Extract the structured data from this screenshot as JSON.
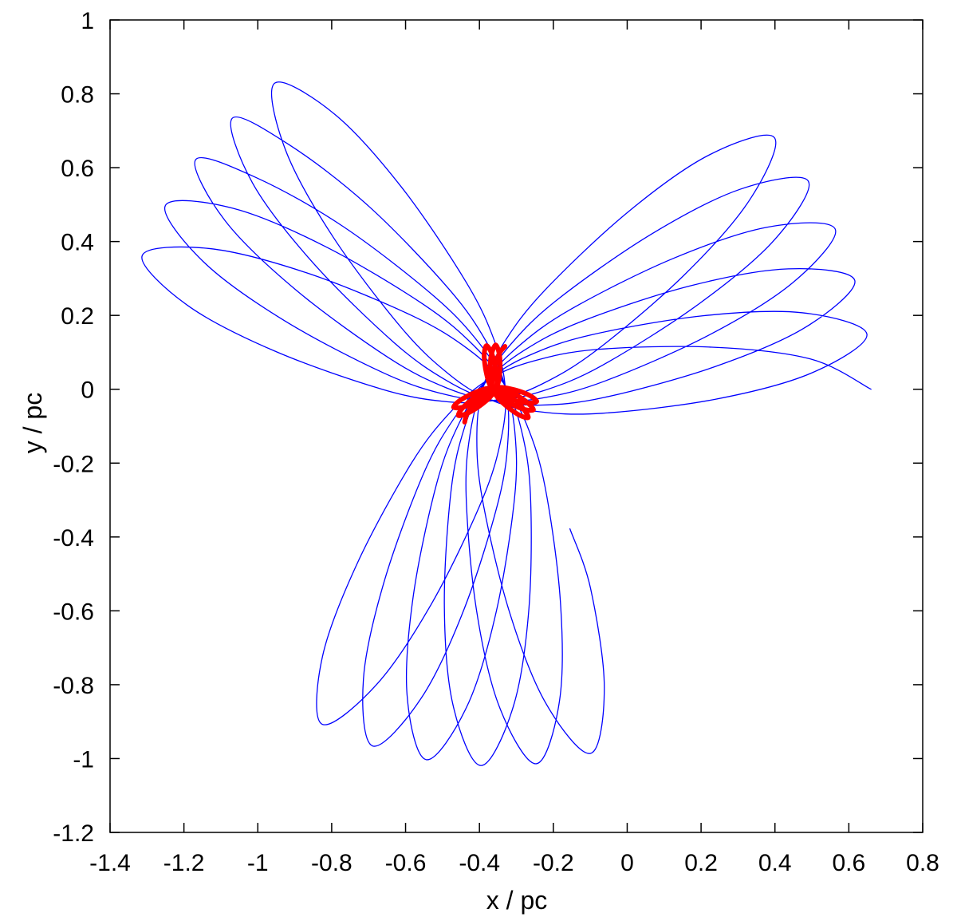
{
  "chart_data": {
    "type": "line",
    "xlabel": "x / pc",
    "ylabel": "y / pc",
    "xlim": [
      -1.4,
      0.8
    ],
    "ylim": [
      -1.2,
      1
    ],
    "xticks": [
      -1.4,
      -1.2,
      -1,
      -0.8,
      -0.6,
      -0.4,
      -0.2,
      0,
      0.2,
      0.4,
      0.6,
      0.8
    ],
    "yticks": [
      -1.2,
      -1,
      -0.8,
      -0.6,
      -0.4,
      -0.2,
      0,
      0.2,
      0.4,
      0.6,
      0.8,
      1
    ],
    "series": [
      {
        "color": "#0000ff",
        "x": [
          0.66,
          0.496,
          0.229,
          -0.08,
          -0.255,
          -0.376,
          -0.476,
          -0.584,
          -0.731,
          -0.825,
          -0.826,
          -0.678,
          -0.527,
          -0.392,
          -0.34,
          -0.33,
          -0.359,
          -0.436,
          -0.61,
          -0.791,
          -0.954,
          -0.925,
          -0.796,
          -0.61,
          -0.483,
          -0.372,
          -0.245,
          -0.067,
          0.239,
          0.499,
          0.649,
          0.475,
          0.206,
          -0.099,
          -0.267,
          -0.379,
          -0.466,
          -0.552,
          -0.658,
          -0.714,
          -0.689,
          -0.558,
          -0.441,
          -0.348,
          -0.322,
          -0.331,
          -0.381,
          -0.484,
          -0.699,
          -0.912,
          -1.069,
          -1.014,
          -0.852,
          -0.632,
          -0.488,
          -0.368,
          -0.237,
          -0.061,
          0.237,
          0.483,
          0.616,
          0.436,
          0.171,
          -0.123,
          -0.281,
          -0.382,
          -0.454,
          -0.516,
          -0.579,
          -0.596,
          -0.544,
          -0.433,
          -0.354,
          -0.305,
          -0.304,
          -0.332,
          -0.4,
          -0.523,
          -0.768,
          -1.002,
          -1.168,
          -1.089,
          -0.897,
          -0.647,
          -0.49,
          -0.363,
          -0.232,
          -0.061,
          0.222,
          0.45,
          0.563,
          0.38,
          0.124,
          -0.152,
          -0.297,
          -0.385,
          -0.44,
          -0.477,
          -0.495,
          -0.472,
          -0.396,
          -0.308,
          -0.266,
          -0.262,
          -0.287,
          -0.334,
          -0.415,
          -0.552,
          -0.818,
          -1.067,
          -1.25,
          -1.148,
          -0.93,
          -0.657,
          -0.489,
          -0.359,
          -0.23,
          -0.067,
          0.194,
          0.399,
          0.49,
          0.307,
          0.067,
          -0.186,
          -0.315,
          -0.387,
          -0.424,
          -0.436,
          -0.408,
          -0.346,
          -0.246,
          -0.183,
          -0.181,
          -0.222,
          -0.272,
          -0.336,
          -0.431,
          -0.584,
          -0.87,
          -1.131,
          -1.313,
          -1.19,
          -0.951,
          -0.66,
          -0.485,
          -0.354,
          -0.231,
          -0.08,
          0.154,
          0.331,
          0.398,
          0.221,
          0.001,
          -0.224,
          -0.333,
          -0.389,
          -0.407,
          -0.392,
          -0.32,
          -0.221,
          -0.099,
          -0.062,
          -0.099,
          -0.155
        ],
        "y": [
          0,
          0.082,
          0.114,
          0.108,
          0.076,
          0.026,
          -0.059,
          -0.2,
          -0.472,
          -0.724,
          -0.907,
          -0.799,
          -0.576,
          -0.298,
          -0.128,
          0.002,
          0.13,
          0.29,
          0.546,
          0.744,
          0.829,
          0.648,
          0.412,
          0.165,
          0.041,
          -0.028,
          -0.06,
          -0.065,
          -0.027,
          0.044,
          0.149,
          0.207,
          0.199,
          0.147,
          0.091,
          0.023,
          -0.075,
          -0.23,
          -0.521,
          -0.784,
          -0.966,
          -0.837,
          -0.594,
          -0.3,
          -0.124,
          0.007,
          0.128,
          0.273,
          0.495,
          0.66,
          0.734,
          0.558,
          0.344,
          0.127,
          0.023,
          -0.029,
          -0.043,
          -0.022,
          0.061,
          0.168,
          0.295,
          0.326,
          0.28,
          0.184,
          0.104,
          0.02,
          -0.09,
          -0.256,
          -0.559,
          -0.827,
          -1.003,
          -0.857,
          -0.6,
          -0.295,
          -0.117,
          0.011,
          0.124,
          0.252,
          0.44,
          0.572,
          0.622,
          0.457,
          0.269,
          0.086,
          0.004,
          -0.03,
          -0.024,
          0.022,
          0.147,
          0.29,
          0.434,
          0.439,
          0.354,
          0.217,
          0.114,
          0.017,
          -0.102,
          -0.276,
          -0.585,
          -0.853,
          -1.019,
          -0.858,
          -0.593,
          -0.284,
          -0.108,
          0.015,
          0.118,
          0.23,
          0.387,
          0.49,
          0.498,
          0.346,
          0.187,
          0.043,
          -0.015,
          -0.03,
          -0.005,
          0.065,
          0.231,
          0.405,
          0.564,
          0.542,
          0.421,
          0.245,
          0.122,
          0.013,
          -0.113,
          -0.29,
          -0.598,
          -0.86,
          -1.014,
          -0.842,
          -0.573,
          -0.266,
          -0.096,
          0.018,
          0.109,
          0.2,
          0.316,
          0.381,
          0.362,
          0.227,
          0.102,
          -0.001,
          -0.034,
          -0.029,
          0.014,
          0.108,
          0.309,
          0.512,
          0.682,
          0.634,
          0.479,
          0.267,
          0.127,
          0.009,
          -0.121,
          -0.298,
          -0.599,
          -0.849,
          -0.986,
          -0.807,
          -0.54,
          -0.378
        ]
      },
      {
        "color": "#ff0000",
        "x": [
          -0.331,
          -0.345,
          -0.356,
          -0.364,
          -0.366,
          -0.364,
          -0.356,
          -0.343,
          -0.316,
          -0.29,
          -0.268,
          -0.278,
          -0.299,
          -0.327,
          -0.345,
          -0.359,
          -0.375,
          -0.395,
          -0.428,
          -0.455,
          -0.47,
          -0.447,
          -0.417,
          -0.385,
          -0.368,
          -0.357,
          -0.351,
          -0.346,
          -0.344,
          -0.347,
          -0.356,
          -0.366,
          -0.371,
          -0.371,
          -0.368,
          -0.363,
          -0.353,
          -0.337,
          -0.306,
          -0.277,
          -0.254,
          -0.268,
          -0.293,
          -0.325,
          -0.345,
          -0.36,
          -0.375,
          -0.394,
          -0.423,
          -0.446,
          -0.457,
          -0.435,
          -0.408,
          -0.379,
          -0.365,
          -0.356,
          -0.353,
          -0.353,
          -0.359,
          -0.368,
          -0.381,
          -0.387,
          -0.385,
          -0.378,
          -0.371,
          -0.363,
          -0.351,
          -0.332,
          -0.298,
          -0.267,
          -0.245,
          -0.262,
          -0.29,
          -0.325,
          -0.346,
          -0.361,
          -0.375,
          -0.391,
          -0.416,
          -0.434,
          -0.44
        ],
        "y": [
          0.116,
          0.099,
          0.07,
          0.035,
          0.014,
          -0.001,
          -0.015,
          -0.031,
          -0.054,
          -0.071,
          -0.077,
          -0.057,
          -0.034,
          -0.011,
          -0.001,
          0.004,
          0.003,
          -0.002,
          -0.016,
          -0.032,
          -0.049,
          -0.049,
          -0.04,
          -0.025,
          -0.013,
          -0.002,
          0.012,
          0.032,
          0.068,
          0.099,
          0.12,
          0.1,
          0.069,
          0.033,
          0.012,
          -0.002,
          -0.013,
          -0.026,
          -0.044,
          -0.055,
          -0.056,
          -0.038,
          -0.02,
          -0.004,
          0.002,
          0.004,
          0,
          -0.009,
          -0.03,
          -0.051,
          -0.071,
          -0.066,
          -0.051,
          -0.029,
          -0.014,
          -0.001,
          0.013,
          0.034,
          0.07,
          0.1,
          0.118,
          0.096,
          0.065,
          0.03,
          0.01,
          -0.003,
          -0.012,
          -0.021,
          -0.032,
          -0.037,
          -0.033,
          -0.018,
          -0.006,
          0.003,
          0.005,
          0.004,
          -0.003,
          -0.016,
          -0.042,
          -0.068,
          -0.089
        ]
      }
    ]
  }
}
